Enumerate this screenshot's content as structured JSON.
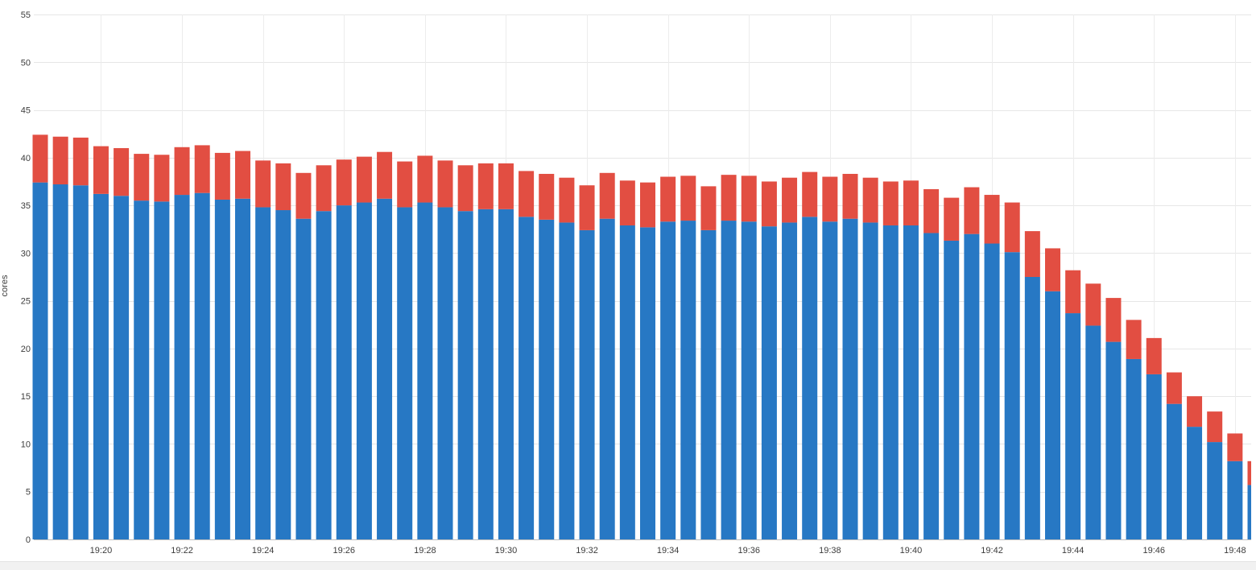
{
  "chart_data": {
    "type": "bar",
    "stacked": true,
    "ylabel": "cores",
    "ylim": [
      0,
      55
    ],
    "yticks": [
      0,
      5,
      10,
      15,
      20,
      25,
      30,
      35,
      40,
      45,
      50,
      55
    ],
    "grid": true,
    "legend": "none",
    "x_tick_labels": [
      "19:20",
      "19:22",
      "19:24",
      "19:26",
      "19:28",
      "19:30",
      "19:32",
      "19:34",
      "19:36",
      "19:38",
      "19:40",
      "19:42",
      "19:44",
      "19:46",
      "19:48"
    ],
    "x_tick_every": 4,
    "x_tick_offset": 3,
    "series": [
      {
        "color": "#2778c4",
        "values": [
          37.4,
          37.2,
          37.1,
          36.2,
          36.0,
          35.5,
          35.4,
          36.1,
          36.3,
          35.6,
          35.7,
          34.8,
          34.5,
          33.6,
          34.4,
          35.0,
          35.3,
          35.7,
          34.8,
          35.3,
          34.8,
          34.4,
          34.6,
          34.6,
          33.8,
          33.5,
          33.2,
          32.4,
          33.6,
          32.9,
          32.7,
          33.3,
          33.4,
          32.4,
          33.4,
          33.3,
          32.8,
          33.2,
          33.8,
          33.3,
          33.6,
          33.2,
          32.9,
          32.9,
          32.1,
          31.3,
          32.0,
          31.0,
          30.1,
          27.5,
          26.0,
          23.7,
          22.4,
          20.7,
          18.9,
          17.3,
          14.2,
          11.8,
          10.2,
          8.2,
          5.7
        ]
      },
      {
        "color": "#e24e42",
        "values": [
          5.0,
          5.0,
          5.0,
          5.0,
          5.0,
          4.9,
          4.9,
          5.0,
          5.0,
          4.9,
          5.0,
          4.9,
          4.9,
          4.8,
          4.8,
          4.8,
          4.8,
          4.9,
          4.8,
          4.9,
          4.9,
          4.8,
          4.8,
          4.8,
          4.8,
          4.8,
          4.7,
          4.7,
          4.8,
          4.7,
          4.7,
          4.7,
          4.7,
          4.6,
          4.8,
          4.8,
          4.7,
          4.7,
          4.7,
          4.7,
          4.7,
          4.7,
          4.6,
          4.7,
          4.6,
          4.5,
          4.9,
          5.1,
          5.2,
          4.8,
          4.5,
          4.5,
          4.4,
          4.6,
          4.1,
          3.8,
          3.3,
          3.2,
          3.2,
          2.9,
          2.5
        ]
      }
    ]
  }
}
